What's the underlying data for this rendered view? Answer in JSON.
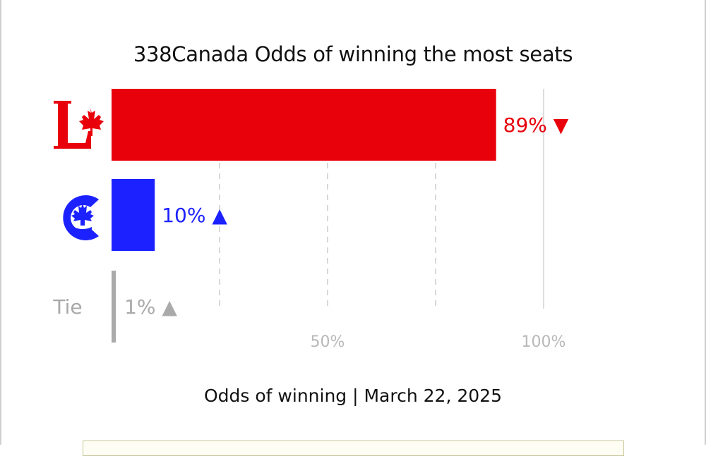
{
  "chart_data": {
    "type": "bar",
    "orientation": "horizontal",
    "title": "338Canada Odds of winning the most seats",
    "xlabel": "Odds of winning | March 22, 2025",
    "xlim": [
      0,
      100
    ],
    "x_ticks": [
      {
        "value": 50,
        "label": "50%"
      },
      {
        "value": 100,
        "label": "100%"
      }
    ],
    "gridlines": [
      25,
      50,
      75,
      100
    ],
    "categories": [
      "Liberal",
      "Conservative",
      "Tie"
    ],
    "series": [
      {
        "values": [
          89,
          10,
          1
        ],
        "labels": [
          "89%",
          "10%",
          "1%"
        ],
        "trend": [
          "down",
          "up",
          "up"
        ],
        "colors": [
          "#e8000b",
          "#1c22ff",
          "#aaaaaa"
        ]
      }
    ],
    "category_text": [
      "",
      "",
      "Tie"
    ],
    "category_icons": [
      "liberal-party-logo-icon",
      "conservative-party-logo-icon",
      ""
    ],
    "trend_glyphs": {
      "up": "▲",
      "down": "▼"
    },
    "grid": true,
    "legend": "none"
  }
}
